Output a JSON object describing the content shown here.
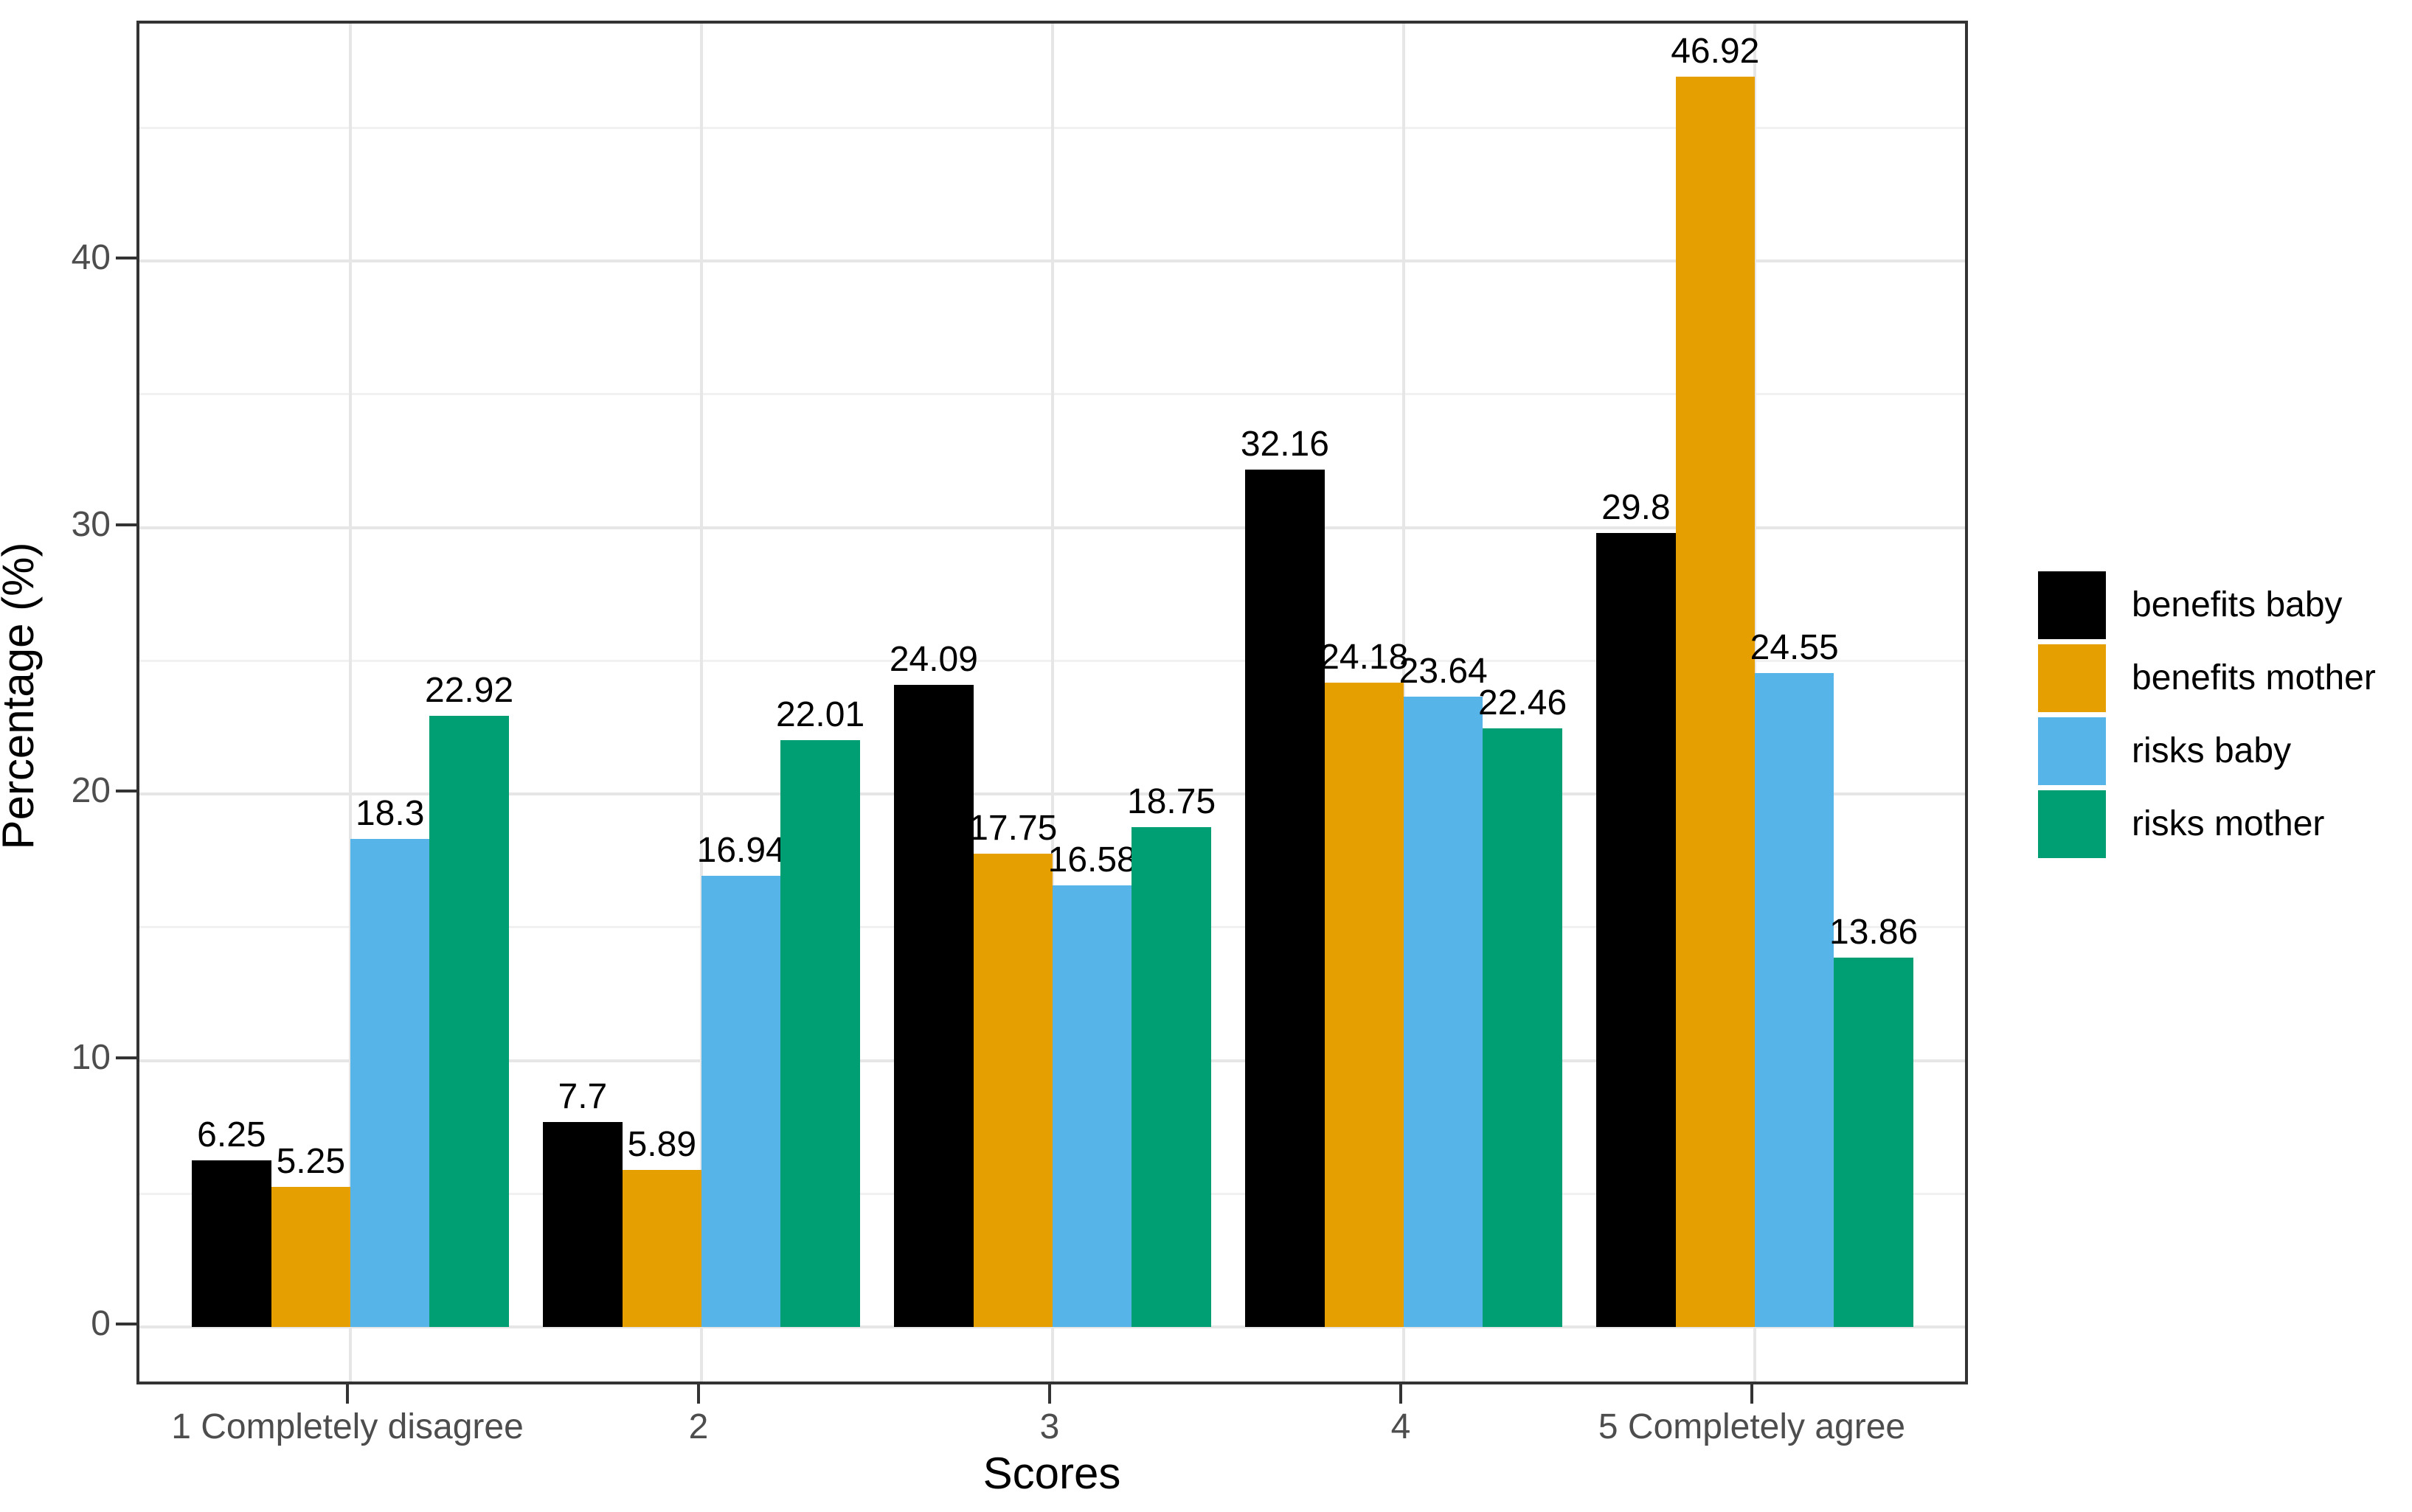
{
  "chart_data": {
    "type": "bar",
    "title": "",
    "xlabel": "Scores",
    "ylabel": "Percentage (%)",
    "categories": [
      "1 Completely disagree",
      "2",
      "3",
      "4",
      "5 Completely agree"
    ],
    "series": [
      {
        "name": "benefits baby",
        "color": "#000000",
        "values": [
          6.25,
          7.7,
          24.09,
          32.16,
          29.8
        ]
      },
      {
        "name": "benefits mother",
        "color": "#e69f00",
        "values": [
          5.25,
          5.89,
          17.75,
          24.18,
          46.92
        ]
      },
      {
        "name": "risks baby",
        "color": "#56b4e9",
        "values": [
          18.3,
          16.94,
          16.58,
          23.64,
          24.55
        ]
      },
      {
        "name": "risks mother",
        "color": "#009e73",
        "values": [
          22.92,
          22.01,
          18.75,
          22.46,
          13.86
        ]
      }
    ],
    "y_ticks": [
      0,
      10,
      20,
      30,
      40
    ],
    "y_minor_ticks": [
      5,
      15,
      25,
      35,
      45
    ],
    "ylim": [
      0,
      48.9
    ],
    "bar_value_labels_shown": true,
    "grid": "horizontal major+minor, vertical major at category centers",
    "legend_position": "right"
  },
  "colors": {
    "background": "#ffffff",
    "panel_border": "#333333",
    "grid_major": "#e6e6e6",
    "grid_minor": "#f1f1f1",
    "axis_text": "#4d4d4d",
    "text": "#000000"
  }
}
